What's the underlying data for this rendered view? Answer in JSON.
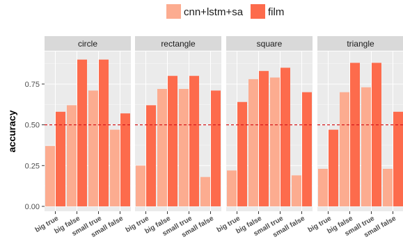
{
  "chart_data": {
    "type": "bar",
    "facets": [
      {
        "name": "circle",
        "categories": [
          "big true",
          "big false",
          "small true",
          "small false"
        ],
        "series": [
          {
            "name": "cnn+lstm+sa",
            "values": [
              0.37,
              0.62,
              0.71,
              0.47
            ]
          },
          {
            "name": "film",
            "values": [
              0.58,
              0.9,
              0.9,
              0.57
            ]
          }
        ]
      },
      {
        "name": "rectangle",
        "categories": [
          "big true",
          "big false",
          "small true",
          "small false"
        ],
        "series": [
          {
            "name": "cnn+lstm+sa",
            "values": [
              0.25,
              0.72,
              0.72,
              0.18
            ]
          },
          {
            "name": "film",
            "values": [
              0.62,
              0.8,
              0.8,
              0.71
            ]
          }
        ]
      },
      {
        "name": "square",
        "categories": [
          "big true",
          "big false",
          "small true",
          "small false"
        ],
        "series": [
          {
            "name": "cnn+lstm+sa",
            "values": [
              0.22,
              0.78,
              0.79,
              0.19
            ]
          },
          {
            "name": "film",
            "values": [
              0.64,
              0.83,
              0.85,
              0.7
            ]
          }
        ]
      },
      {
        "name": "triangle",
        "categories": [
          "big true",
          "big false",
          "small true",
          "small false"
        ],
        "series": [
          {
            "name": "cnn+lstm+sa",
            "values": [
              0.23,
              0.7,
              0.73,
              0.23
            ]
          },
          {
            "name": "film",
            "values": [
              0.47,
              0.88,
              0.88,
              0.58
            ]
          }
        ]
      }
    ],
    "ylabel": "accuracy",
    "xlabel": "",
    "ylim": [
      -0.03,
      0.95
    ],
    "yticks": [
      0.0,
      0.25,
      0.5,
      0.75
    ],
    "ytick_labels": [
      "0.00",
      "0.25",
      "0.50",
      "0.75"
    ],
    "reference_line": 0.5,
    "legend": {
      "placement": "top",
      "entries": [
        {
          "name": "cnn+lstm+sa",
          "color": "#FCAC90"
        },
        {
          "name": "film",
          "color": "#FD6B4C"
        }
      ]
    },
    "colors": {
      "cnn+lstm+sa": "#FCAC90",
      "film": "#FD6B4C",
      "reference_line": "#D7191C",
      "panel_bg": "#EBEBEB",
      "strip_bg": "#D9D9D9",
      "grid": "#FFFFFF"
    },
    "grid": true
  }
}
